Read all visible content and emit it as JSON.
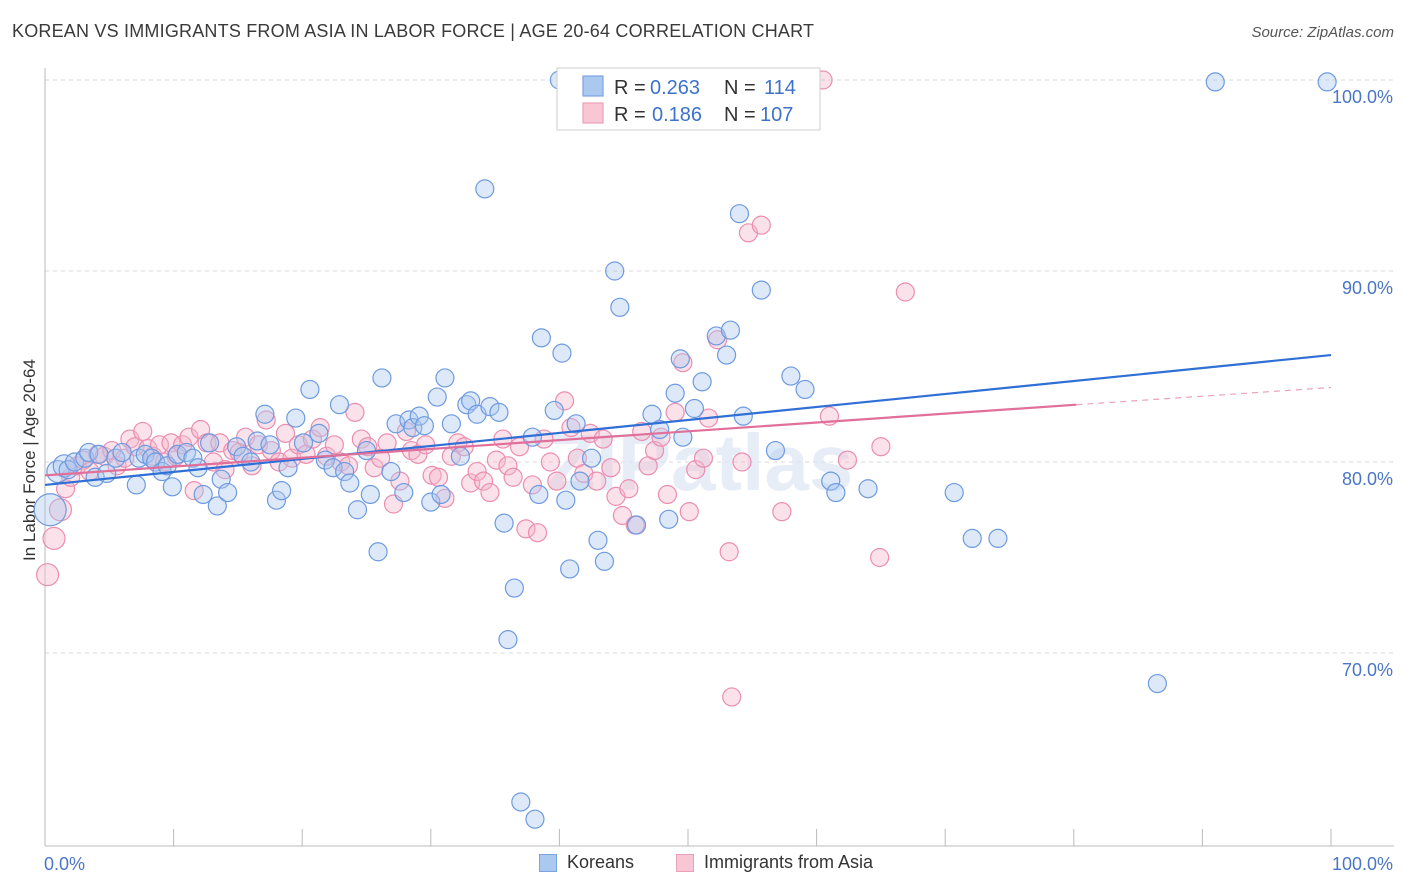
{
  "title": "KOREAN VS IMMIGRANTS FROM ASIA IN LABOR FORCE | AGE 20-64 CORRELATION CHART",
  "source": "Source: ZipAtlas.com",
  "watermark": "ZIPatlas",
  "colors": {
    "blue": "#4a7fd8",
    "blue_fill": "#aac8f0",
    "pink": "#e0709a",
    "pink_fill": "#f4b6cb",
    "tick_text": "#4a76c7",
    "grid": "#d8d8d8"
  },
  "legend": {
    "rows": [
      {
        "r_label": "R =",
        "r_value": "0.263",
        "n_label": "N =",
        "n_value": "114"
      },
      {
        "r_label": "R =",
        "r_value": "0.186",
        "n_label": "N =",
        "n_value": "107"
      }
    ]
  },
  "bottom_legend": {
    "items": [
      {
        "label": "Koreans"
      },
      {
        "label": "Immigrants from Asia"
      }
    ]
  },
  "chart_data": {
    "type": "scatter",
    "title": "KOREAN VS IMMIGRANTS FROM ASIA IN LABOR FORCE | AGE 20-64 CORRELATION CHART",
    "xlabel": "",
    "ylabel": "In Labor Force | Age 20-64",
    "xlim": [
      0,
      100
    ],
    "ylim": [
      60.0,
      100.5
    ],
    "x_tick_labels": [
      "0.0%",
      "100.0%"
    ],
    "y_ticks": [
      70,
      80,
      90,
      100
    ],
    "y_tick_labels": [
      "70.0%",
      "80.0%",
      "90.0%",
      "100.0%"
    ],
    "grid": true,
    "legend_position": "top-center",
    "series": [
      {
        "name": "Koreans",
        "color": "#4a7fd8",
        "trend": {
          "x": [
            0,
            100
          ],
          "y": [
            78.8,
            85.6
          ]
        },
        "points": [
          [
            0.4,
            77.5
          ],
          [
            1.0,
            79.5
          ],
          [
            1.5,
            79.8
          ],
          [
            1.8,
            79.6
          ],
          [
            2.3,
            80.0
          ],
          [
            3.1,
            80.2
          ],
          [
            3.4,
            80.5
          ],
          [
            3.9,
            79.2
          ],
          [
            4.2,
            80.4
          ],
          [
            4.8,
            79.4
          ],
          [
            5.5,
            80.2
          ],
          [
            6.0,
            80.5
          ],
          [
            7.1,
            78.8
          ],
          [
            7.3,
            80.2
          ],
          [
            7.8,
            80.4
          ],
          [
            8.3,
            80.2
          ],
          [
            8.6,
            80.0
          ],
          [
            9.1,
            79.5
          ],
          [
            9.5,
            79.8
          ],
          [
            9.9,
            78.7
          ],
          [
            10.3,
            80.4
          ],
          [
            11.0,
            80.5
          ],
          [
            11.5,
            80.2
          ],
          [
            11.9,
            79.7
          ],
          [
            12.3,
            78.3
          ],
          [
            12.8,
            81.0
          ],
          [
            13.4,
            77.7
          ],
          [
            13.7,
            79.1
          ],
          [
            14.2,
            78.4
          ],
          [
            14.9,
            80.8
          ],
          [
            15.4,
            80.3
          ],
          [
            16.0,
            80.0
          ],
          [
            16.5,
            81.1
          ],
          [
            17.1,
            82.5
          ],
          [
            17.5,
            80.9
          ],
          [
            18.0,
            78.0
          ],
          [
            18.4,
            78.5
          ],
          [
            18.9,
            79.7
          ],
          [
            19.5,
            82.3
          ],
          [
            20.1,
            81.0
          ],
          [
            20.6,
            83.8
          ],
          [
            21.3,
            81.5
          ],
          [
            21.8,
            80.1
          ],
          [
            22.4,
            79.7
          ],
          [
            22.9,
            83.0
          ],
          [
            23.3,
            79.5
          ],
          [
            23.7,
            78.9
          ],
          [
            24.3,
            77.5
          ],
          [
            25.0,
            80.6
          ],
          [
            25.3,
            78.3
          ],
          [
            25.9,
            75.3
          ],
          [
            26.2,
            84.4
          ],
          [
            26.9,
            79.5
          ],
          [
            27.3,
            82.0
          ],
          [
            27.9,
            78.4
          ],
          [
            28.3,
            82.2
          ],
          [
            28.6,
            81.8
          ],
          [
            29.1,
            82.4
          ],
          [
            29.5,
            81.9
          ],
          [
            30.0,
            77.9
          ],
          [
            30.5,
            83.4
          ],
          [
            30.8,
            78.3
          ],
          [
            31.1,
            84.4
          ],
          [
            31.6,
            82.0
          ],
          [
            32.3,
            80.3
          ],
          [
            32.8,
            83.0
          ],
          [
            33.1,
            83.2
          ],
          [
            33.6,
            82.5
          ],
          [
            34.2,
            94.3
          ],
          [
            34.6,
            82.9
          ],
          [
            35.3,
            82.6
          ],
          [
            35.7,
            76.8
          ],
          [
            36.0,
            70.7
          ],
          [
            36.5,
            73.4
          ],
          [
            37.0,
            62.2
          ],
          [
            37.9,
            81.3
          ],
          [
            38.1,
            61.3
          ],
          [
            38.4,
            78.3
          ],
          [
            38.6,
            86.5
          ],
          [
            39.6,
            82.7
          ],
          [
            40.2,
            85.7
          ],
          [
            40.5,
            78.0
          ],
          [
            40.8,
            74.4
          ],
          [
            41.3,
            82.0
          ],
          [
            41.6,
            79.0
          ],
          [
            42.5,
            80.2
          ],
          [
            43.0,
            75.9
          ],
          [
            43.5,
            74.8
          ],
          [
            44.3,
            90.0
          ],
          [
            44.7,
            88.1
          ],
          [
            46.0,
            76.7
          ],
          [
            47.2,
            82.5
          ],
          [
            47.8,
            81.7
          ],
          [
            48.5,
            77.0
          ],
          [
            49.0,
            83.6
          ],
          [
            49.4,
            85.4
          ],
          [
            49.6,
            81.3
          ],
          [
            50.5,
            82.8
          ],
          [
            51.1,
            84.2
          ],
          [
            52.2,
            86.6
          ],
          [
            53.0,
            85.6
          ],
          [
            53.3,
            86.9
          ],
          [
            54.0,
            93.0
          ],
          [
            54.3,
            82.4
          ],
          [
            55.7,
            89.0
          ],
          [
            56.8,
            80.6
          ],
          [
            58.0,
            84.5
          ],
          [
            59.1,
            83.8
          ],
          [
            61.1,
            79.0
          ],
          [
            61.5,
            78.4
          ],
          [
            64.0,
            78.6
          ],
          [
            70.7,
            78.4
          ],
          [
            72.1,
            76.0
          ],
          [
            74.1,
            76.0
          ],
          [
            86.5,
            68.4
          ],
          [
            91.0,
            99.9
          ],
          [
            99.7,
            99.9
          ],
          [
            40.0,
            100.0
          ]
        ]
      },
      {
        "name": "Immigrants from Asia",
        "color": "#e0709a",
        "trend": {
          "x": [
            0,
            80.2
          ],
          "y": [
            79.3,
            83.0
          ]
        },
        "trend_dashed": {
          "x": [
            80.2,
            100
          ],
          "y": [
            83.0,
            83.9
          ]
        },
        "points": [
          [
            0.2,
            74.1
          ],
          [
            0.7,
            76.0
          ],
          [
            1.2,
            77.5
          ],
          [
            1.6,
            78.6
          ],
          [
            2.0,
            79.2
          ],
          [
            2.5,
            79.8
          ],
          [
            3.0,
            80.1
          ],
          [
            3.5,
            79.5
          ],
          [
            4.1,
            80.4
          ],
          [
            4.6,
            80.3
          ],
          [
            5.2,
            80.6
          ],
          [
            5.6,
            79.8
          ],
          [
            6.2,
            80.2
          ],
          [
            6.6,
            81.2
          ],
          [
            7.0,
            80.8
          ],
          [
            7.6,
            81.6
          ],
          [
            8.0,
            80.7
          ],
          [
            8.4,
            80.3
          ],
          [
            8.9,
            80.9
          ],
          [
            9.3,
            80.0
          ],
          [
            9.8,
            81.0
          ],
          [
            10.2,
            80.3
          ],
          [
            10.7,
            80.9
          ],
          [
            11.2,
            81.3
          ],
          [
            11.6,
            78.5
          ],
          [
            12.1,
            81.7
          ],
          [
            12.6,
            81.0
          ],
          [
            13.1,
            80.0
          ],
          [
            13.6,
            81.0
          ],
          [
            14.0,
            79.6
          ],
          [
            14.6,
            80.6
          ],
          [
            15.1,
            80.5
          ],
          [
            15.6,
            81.3
          ],
          [
            16.1,
            79.8
          ],
          [
            16.6,
            80.9
          ],
          [
            17.2,
            82.2
          ],
          [
            17.6,
            80.6
          ],
          [
            18.2,
            80.0
          ],
          [
            18.7,
            81.5
          ],
          [
            19.2,
            80.2
          ],
          [
            19.7,
            80.9
          ],
          [
            20.3,
            80.4
          ],
          [
            20.8,
            81.2
          ],
          [
            21.4,
            81.8
          ],
          [
            21.9,
            80.3
          ],
          [
            22.5,
            80.9
          ],
          [
            23.0,
            80.0
          ],
          [
            23.6,
            79.8
          ],
          [
            24.1,
            82.6
          ],
          [
            24.6,
            81.2
          ],
          [
            25.1,
            80.8
          ],
          [
            25.6,
            79.7
          ],
          [
            26.1,
            80.2
          ],
          [
            26.6,
            81.0
          ],
          [
            27.1,
            77.8
          ],
          [
            27.6,
            79.0
          ],
          [
            28.1,
            81.6
          ],
          [
            28.5,
            80.6
          ],
          [
            29.0,
            80.4
          ],
          [
            29.6,
            80.9
          ],
          [
            30.1,
            79.3
          ],
          [
            30.6,
            79.2
          ],
          [
            31.1,
            78.1
          ],
          [
            31.6,
            80.3
          ],
          [
            32.1,
            81.0
          ],
          [
            32.6,
            80.8
          ],
          [
            33.1,
            78.9
          ],
          [
            33.6,
            79.5
          ],
          [
            34.1,
            79.0
          ],
          [
            34.6,
            78.4
          ],
          [
            35.1,
            80.1
          ],
          [
            35.6,
            81.2
          ],
          [
            36.0,
            79.8
          ],
          [
            36.4,
            79.2
          ],
          [
            36.9,
            80.8
          ],
          [
            37.4,
            76.5
          ],
          [
            37.9,
            78.8
          ],
          [
            38.3,
            76.3
          ],
          [
            38.8,
            81.2
          ],
          [
            39.3,
            80.0
          ],
          [
            39.8,
            79.0
          ],
          [
            40.4,
            83.2
          ],
          [
            40.9,
            81.8
          ],
          [
            41.4,
            80.2
          ],
          [
            41.9,
            79.4
          ],
          [
            42.4,
            81.5
          ],
          [
            42.9,
            79.0
          ],
          [
            43.4,
            81.2
          ],
          [
            44.0,
            79.7
          ],
          [
            44.4,
            78.2
          ],
          [
            44.9,
            77.2
          ],
          [
            45.4,
            78.6
          ],
          [
            45.9,
            76.7
          ],
          [
            46.4,
            81.6
          ],
          [
            46.9,
            79.8
          ],
          [
            47.4,
            80.6
          ],
          [
            47.9,
            81.3
          ],
          [
            48.4,
            78.3
          ],
          [
            49.0,
            82.6
          ],
          [
            49.6,
            85.2
          ],
          [
            50.1,
            77.4
          ],
          [
            50.6,
            79.6
          ],
          [
            51.2,
            80.2
          ],
          [
            51.6,
            82.3
          ],
          [
            52.3,
            86.4
          ],
          [
            53.2,
            75.3
          ],
          [
            53.4,
            67.7
          ],
          [
            54.2,
            80.0
          ],
          [
            54.7,
            92.0
          ],
          [
            55.7,
            92.4
          ],
          [
            57.3,
            77.4
          ],
          [
            60.5,
            100.0
          ],
          [
            61.0,
            82.4
          ],
          [
            62.4,
            80.1
          ],
          [
            64.9,
            75.0
          ],
          [
            65.0,
            80.8
          ],
          [
            66.9,
            88.9
          ]
        ]
      }
    ]
  }
}
